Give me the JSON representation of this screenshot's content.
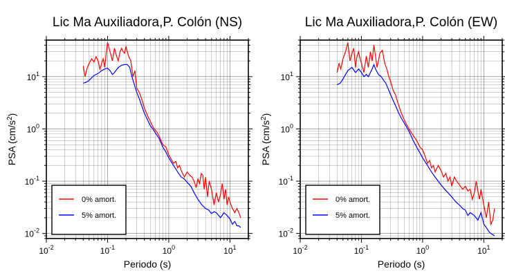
{
  "chart_data": [
    {
      "type": "line",
      "title": "Lic Ma Auxiliadora,P. Colón (NS)",
      "xlabel": "Periodo (s)",
      "ylabel": "PSA (cm/s²)",
      "xscale": "log",
      "yscale": "log",
      "xlim": [
        0.01,
        20
      ],
      "ylim": [
        0.008,
        50
      ],
      "xticks": [
        0.01,
        0.1,
        1,
        10
      ],
      "yticks": [
        0.01,
        0.1,
        1,
        10
      ],
      "grid": true,
      "legend_position": "bottom-left",
      "series": [
        {
          "name": "0% amort.",
          "color": "#ff0000",
          "x": [
            0.04,
            0.043,
            0.046,
            0.05,
            0.055,
            0.06,
            0.065,
            0.07,
            0.075,
            0.08,
            0.085,
            0.09,
            0.095,
            0.1,
            0.11,
            0.12,
            0.13,
            0.14,
            0.15,
            0.16,
            0.17,
            0.18,
            0.19,
            0.2,
            0.22,
            0.24,
            0.26,
            0.28,
            0.3,
            0.33,
            0.36,
            0.4,
            0.45,
            0.5,
            0.55,
            0.6,
            0.65,
            0.7,
            0.8,
            0.9,
            1.0,
            1.1,
            1.2,
            1.3,
            1.4,
            1.5,
            1.6,
            1.8,
            2.0,
            2.2,
            2.4,
            2.6,
            2.8,
            3.0,
            3.2,
            3.4,
            3.6,
            3.8,
            4.0,
            4.3,
            4.6,
            5.0,
            5.5,
            6.0,
            6.5,
            7.0,
            7.5,
            8.0,
            8.5,
            9.0,
            9.5,
            10.0,
            11.0,
            12.0,
            13.0,
            14.0,
            15.0
          ],
          "y": [
            16,
            10,
            14,
            18,
            22,
            19,
            24,
            20,
            14,
            18,
            22,
            15,
            28,
            45,
            30,
            20,
            35,
            25,
            20,
            30,
            35,
            30,
            28,
            38,
            25,
            20,
            10,
            13,
            6,
            5,
            3.8,
            2.5,
            1.8,
            1.4,
            1.1,
            0.95,
            0.85,
            0.72,
            0.5,
            0.45,
            0.32,
            0.26,
            0.22,
            0.24,
            0.18,
            0.2,
            0.16,
            0.12,
            0.15,
            0.13,
            0.12,
            0.1,
            0.075,
            0.11,
            0.09,
            0.14,
            0.13,
            0.07,
            0.12,
            0.05,
            0.1,
            0.07,
            0.035,
            0.06,
            0.04,
            0.055,
            0.09,
            0.045,
            0.07,
            0.035,
            0.05,
            0.04,
            0.03,
            0.025,
            0.03,
            0.025,
            0.02
          ]
        },
        {
          "name": "5% amort.",
          "color": "#0000ff",
          "x": [
            0.04,
            0.045,
            0.05,
            0.055,
            0.06,
            0.07,
            0.08,
            0.09,
            0.1,
            0.11,
            0.12,
            0.13,
            0.14,
            0.15,
            0.17,
            0.19,
            0.21,
            0.23,
            0.25,
            0.28,
            0.3,
            0.33,
            0.36,
            0.4,
            0.45,
            0.5,
            0.55,
            0.6,
            0.7,
            0.8,
            0.9,
            1.0,
            1.2,
            1.4,
            1.6,
            1.8,
            2.0,
            2.3,
            2.6,
            3.0,
            3.5,
            4.0,
            4.5,
            5.0,
            5.5,
            6.0,
            7.0,
            8.0,
            9.0,
            10.0,
            11.0,
            12.0,
            13.0,
            14.0,
            15.0
          ],
          "y": [
            7.5,
            7.8,
            8.5,
            9.5,
            10.5,
            11.5,
            13,
            14,
            14.5,
            13,
            11,
            12,
            13.5,
            15,
            16.5,
            17,
            17,
            15,
            10,
            6.5,
            5,
            3.8,
            2.8,
            2,
            1.5,
            1.15,
            1,
            0.85,
            0.65,
            0.45,
            0.36,
            0.28,
            0.2,
            0.15,
            0.12,
            0.11,
            0.095,
            0.08,
            0.06,
            0.045,
            0.035,
            0.03,
            0.028,
            0.024,
            0.026,
            0.025,
            0.02,
            0.025,
            0.022,
            0.019,
            0.015,
            0.017,
            0.014,
            0.014,
            0.013
          ]
        }
      ]
    },
    {
      "type": "line",
      "title": "Lic Ma Auxiliadora,P. Colón (EW)",
      "xlabel": "Periodo (s)",
      "ylabel": "PSA (cm/s²)",
      "xscale": "log",
      "yscale": "log",
      "xlim": [
        0.01,
        20
      ],
      "ylim": [
        0.008,
        50
      ],
      "xticks": [
        0.01,
        0.1,
        1,
        10
      ],
      "yticks": [
        0.01,
        0.1,
        1,
        10
      ],
      "grid": true,
      "legend_position": "bottom-left",
      "series": [
        {
          "name": "0% amort.",
          "color": "#ff0000",
          "x": [
            0.04,
            0.043,
            0.046,
            0.05,
            0.055,
            0.06,
            0.065,
            0.07,
            0.075,
            0.08,
            0.085,
            0.09,
            0.095,
            0.1,
            0.11,
            0.12,
            0.13,
            0.14,
            0.15,
            0.16,
            0.17,
            0.18,
            0.19,
            0.2,
            0.22,
            0.24,
            0.26,
            0.28,
            0.3,
            0.33,
            0.36,
            0.4,
            0.45,
            0.5,
            0.55,
            0.6,
            0.7,
            0.8,
            0.9,
            1.0,
            1.1,
            1.2,
            1.3,
            1.4,
            1.5,
            1.6,
            1.8,
            2.0,
            2.2,
            2.4,
            2.6,
            2.8,
            3.0,
            3.3,
            3.6,
            4.0,
            4.5,
            5.0,
            5.5,
            6.0,
            6.5,
            7.0,
            7.5,
            8.0,
            8.5,
            9.0,
            10.0,
            11.0,
            12.0,
            13.0,
            14.0,
            15.0
          ],
          "y": [
            12,
            18,
            14,
            22,
            30,
            45,
            20,
            28,
            35,
            15,
            25,
            30,
            22,
            18,
            12,
            25,
            15,
            30,
            20,
            40,
            25,
            15,
            20,
            28,
            32,
            18,
            14,
            10,
            8,
            5.5,
            4.5,
            3,
            2,
            1.5,
            1.2,
            1,
            0.75,
            0.6,
            0.45,
            0.4,
            0.3,
            0.22,
            0.25,
            0.18,
            0.2,
            0.15,
            0.2,
            0.16,
            0.12,
            0.14,
            0.1,
            0.12,
            0.08,
            0.12,
            0.1,
            0.085,
            0.07,
            0.08,
            0.065,
            0.07,
            0.045,
            0.06,
            0.1,
            0.065,
            0.045,
            0.07,
            0.035,
            0.02,
            0.04,
            0.015,
            0.018,
            0.03
          ]
        },
        {
          "name": "5% amort.",
          "color": "#0000ff",
          "x": [
            0.04,
            0.045,
            0.05,
            0.055,
            0.06,
            0.07,
            0.08,
            0.09,
            0.1,
            0.11,
            0.12,
            0.13,
            0.14,
            0.15,
            0.16,
            0.17,
            0.19,
            0.21,
            0.23,
            0.25,
            0.28,
            0.3,
            0.33,
            0.36,
            0.4,
            0.45,
            0.5,
            0.6,
            0.7,
            0.8,
            0.9,
            1.0,
            1.2,
            1.4,
            1.6,
            1.8,
            2.0,
            2.3,
            2.6,
            3.0,
            3.5,
            4.0,
            4.5,
            5.0,
            5.5,
            6.0,
            7.0,
            8.0,
            9.0,
            10.0,
            11.0,
            12.0,
            13.0,
            14.0,
            15.0
          ],
          "y": [
            7,
            7.5,
            9,
            11,
            13,
            15,
            12,
            14,
            12,
            10,
            11,
            10,
            12,
            14,
            17,
            14,
            11,
            10,
            8.5,
            7.5,
            5.5,
            4.5,
            3.5,
            2.8,
            2.1,
            1.6,
            1.3,
            0.9,
            0.6,
            0.45,
            0.35,
            0.28,
            0.2,
            0.15,
            0.12,
            0.1,
            0.085,
            0.07,
            0.06,
            0.05,
            0.04,
            0.035,
            0.03,
            0.028,
            0.022,
            0.025,
            0.022,
            0.018,
            0.025,
            0.015,
            0.013,
            0.011,
            0.01,
            0.0095,
            0.009
          ]
        }
      ]
    }
  ]
}
